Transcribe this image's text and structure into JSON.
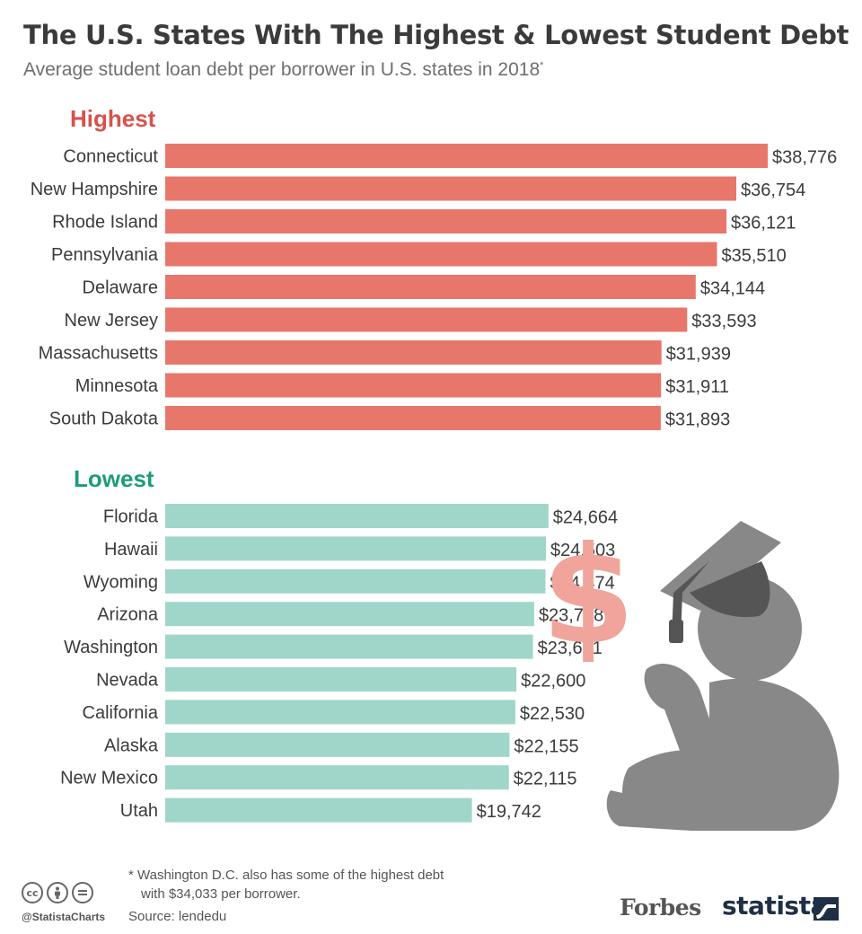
{
  "header": {
    "title": "The U.S. States With The Highest & Lowest Student Debt",
    "subtitle": "Average student loan debt per borrower in U.S. states in 2018",
    "subtitle_mark": "*"
  },
  "chart_data": [
    {
      "type": "bar",
      "orientation": "horizontal",
      "title": "Highest",
      "color": "#e8776b",
      "title_color": "#d9524a",
      "categories": [
        "Connecticut",
        "New Hampshire",
        "Rhode Island",
        "Pennsylvania",
        "Delaware",
        "New Jersey",
        "Massachusetts",
        "Minnesota",
        "South Dakota"
      ],
      "values": [
        38776,
        36754,
        36121,
        35510,
        34144,
        33593,
        31939,
        31911,
        31893
      ],
      "labels": [
        "$38,776",
        "$36,754",
        "$36,121",
        "$35,510",
        "$34,144",
        "$33,593",
        "$31,939",
        "$31,911",
        "$31,893"
      ],
      "grid": false
    },
    {
      "type": "bar",
      "orientation": "horizontal",
      "title": "Lowest",
      "color": "#9fd6c9",
      "title_color": "#1e9b7d",
      "categories": [
        "Florida",
        "Hawaii",
        "Wyoming",
        "Arizona",
        "Washington",
        "Nevada",
        "California",
        "Alaska",
        "New Mexico",
        "Utah"
      ],
      "values": [
        24664,
        24503,
        24474,
        23748,
        23671,
        22600,
        22530,
        22155,
        22115,
        19742
      ],
      "labels": [
        "$24,664",
        "$24,503",
        "$24,474",
        "$23,748",
        "$23,671",
        "$22,600",
        "$22,530",
        "$22,155",
        "$22,115",
        "$19,742"
      ],
      "grid": false
    }
  ],
  "footer": {
    "footnote_line1": "* Washington D.C. also has some of the highest debt",
    "footnote_line2": "with $34,033 per borrower.",
    "source": "Source: lendedu",
    "handle": "@StatistaCharts",
    "cc_icons": [
      "cc",
      "by",
      "nd"
    ],
    "logo_forbes": "Forbes",
    "logo_statista": "statista"
  },
  "illustration": {
    "icon": "student-debt-icon",
    "dollar_sign": "$",
    "dollar_color": "#f0a49b",
    "figure_color": "#888888",
    "cap_color": "#555555"
  }
}
